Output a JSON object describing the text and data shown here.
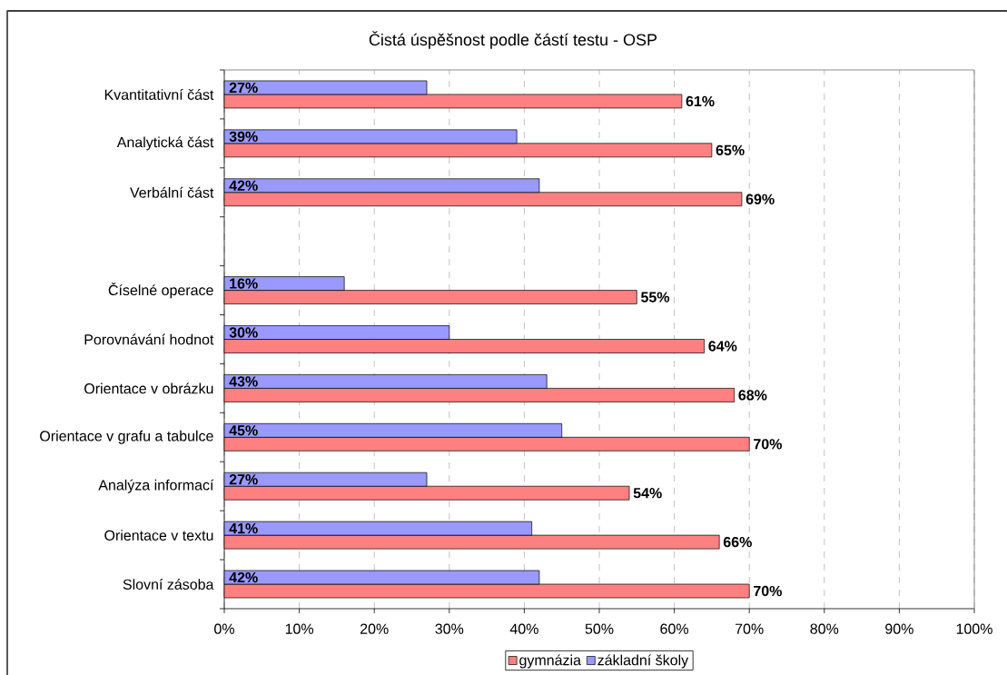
{
  "chart_data": {
    "type": "bar",
    "orientation": "horizontal",
    "title": "Čistá úspěšnost podle částí testu - OSP",
    "categories": [
      "Kvantitativní část",
      "Analytická část",
      "Verbální část",
      null,
      "Číselné operace",
      "Porovnávání hodnot",
      "Orientace v obrázku",
      "Orientace v grafu a tabulce",
      "Analýza informací",
      "Orientace v textu",
      "Slovní zásoba"
    ],
    "series": [
      {
        "name": "gymnázia",
        "color": "#ff8080",
        "values": [
          61,
          65,
          69,
          null,
          55,
          64,
          68,
          70,
          54,
          66,
          70
        ],
        "value_labels": [
          "61%",
          "65%",
          "69%",
          null,
          "55%",
          "64%",
          "68%",
          "70%",
          "54%",
          "66%",
          "70%"
        ]
      },
      {
        "name": "základní školy",
        "color": "#9999ff",
        "values": [
          27,
          39,
          42,
          null,
          16,
          30,
          43,
          45,
          27,
          41,
          42
        ],
        "value_labels": [
          "27%",
          "39%",
          "42%",
          null,
          "16%",
          "30%",
          "43%",
          "45%",
          "27%",
          "41%",
          "42%"
        ]
      }
    ],
    "xlim": [
      0,
      100
    ],
    "xticks": [
      {
        "value": 0,
        "label": "0%"
      },
      {
        "value": 10,
        "label": "10%"
      },
      {
        "value": 20,
        "label": "20%"
      },
      {
        "value": 30,
        "label": "30%"
      },
      {
        "value": 40,
        "label": "40%"
      },
      {
        "value": 50,
        "label": "50%"
      },
      {
        "value": 60,
        "label": "60%"
      },
      {
        "value": 70,
        "label": "70%"
      },
      {
        "value": 80,
        "label": "80%"
      },
      {
        "value": 90,
        "label": "90%"
      },
      {
        "value": 100,
        "label": "100%"
      }
    ],
    "grid": "x",
    "legend": "bottom"
  }
}
